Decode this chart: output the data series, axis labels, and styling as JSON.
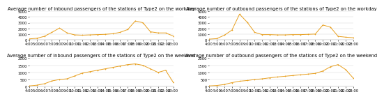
{
  "titles": [
    "Average number of inbound passengers of the stations of Type2 on the workday",
    "Average number of outbound passengers of the stations of Type2 on the workday",
    "Average number of inbound passengers of the stations of Type2 on the weekend",
    "Average number of outbound passengers of the stations of Type2 on the weekend"
  ],
  "x_ticks": [
    "4:00",
    "5:00",
    "6:00",
    "7:00",
    "8:00",
    "9:00",
    "10:00",
    "11:00",
    "12:00",
    "13:00",
    "14:00",
    "15:00",
    "16:00",
    "17:00",
    "18:00",
    "19:00",
    "20:00",
    "21:00",
    "22:00",
    "23:00"
  ],
  "x_values": [
    400,
    500,
    600,
    700,
    800,
    900,
    1000,
    1100,
    1200,
    1300,
    1400,
    1500,
    1600,
    1700,
    1800,
    1900,
    2000,
    2100,
    2200,
    2300
  ],
  "inbound_workday": [
    150,
    250,
    600,
    1300,
    2050,
    1200,
    850,
    800,
    850,
    900,
    950,
    1050,
    1300,
    1800,
    3300,
    3000,
    1400,
    1200,
    1200,
    650
  ],
  "outbound_workday": [
    100,
    200,
    800,
    1700,
    4500,
    3100,
    1300,
    900,
    900,
    850,
    850,
    900,
    900,
    950,
    1000,
    2600,
    2200,
    600,
    450,
    350
  ],
  "inbound_weekend": [
    50,
    100,
    200,
    400,
    500,
    550,
    750,
    950,
    1050,
    1150,
    1250,
    1350,
    1450,
    1550,
    1600,
    1500,
    1250,
    1000,
    1150,
    300
  ],
  "outbound_weekend": [
    50,
    80,
    150,
    280,
    380,
    430,
    500,
    550,
    620,
    680,
    730,
    780,
    830,
    880,
    930,
    1100,
    1400,
    1550,
    1200,
    600
  ],
  "ylim_workday": [
    0,
    5000
  ],
  "ylim_weekend": [
    0,
    2000
  ],
  "line_color": "#E8A020",
  "bg_color": "#ffffff",
  "grid_color": "#d0d0d0",
  "title_fontsize": 4.8,
  "tick_fontsize": 3.8
}
